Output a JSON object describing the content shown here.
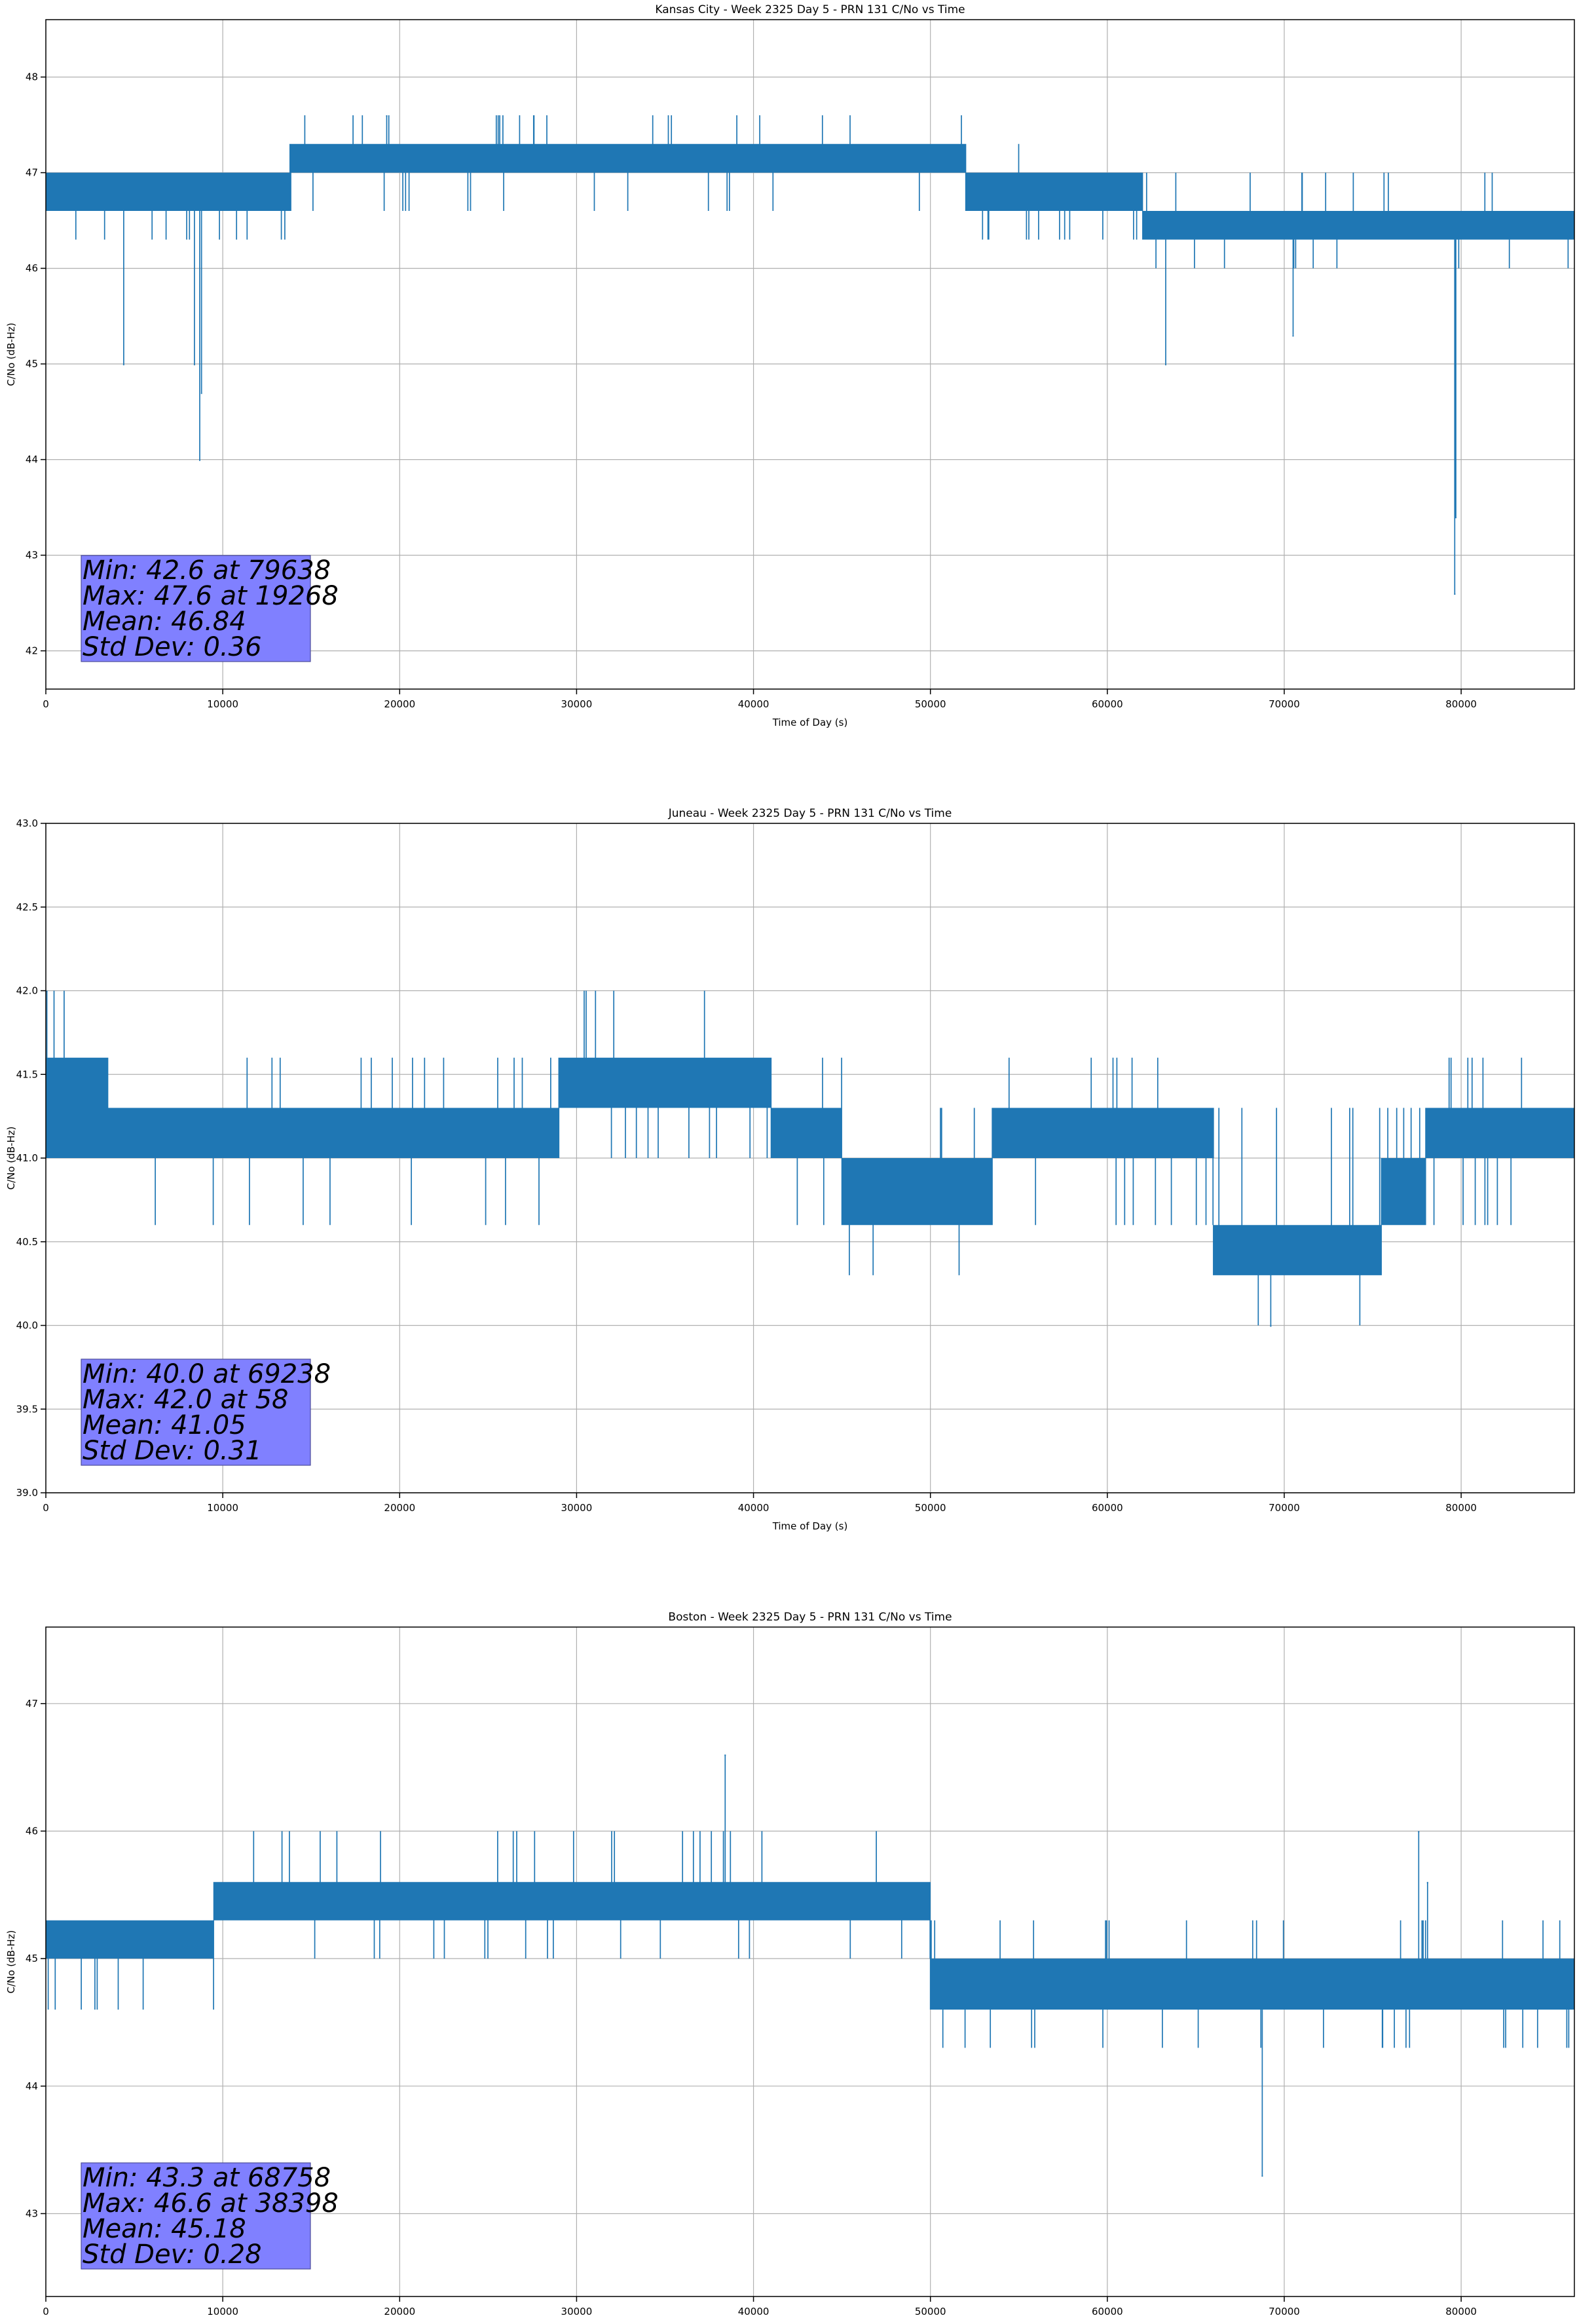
{
  "chart_data": [
    {
      "type": "line",
      "title": "Kansas City - Week 2325 Day 5 - PRN 131 C/No vs Time",
      "xlabel": "Time of Day (s)",
      "ylabel": "C/No (dB-Hz)",
      "xlim": [
        0,
        86400
      ],
      "ylim": [
        41.6,
        48.6
      ],
      "x_ticks": [
        0,
        10000,
        20000,
        30000,
        40000,
        50000,
        60000,
        70000,
        80000
      ],
      "y_ticks": [
        42,
        43,
        44,
        45,
        46,
        47,
        48
      ],
      "y_decimals": 0,
      "grid": true,
      "color": "#1f77b4",
      "stats_text": [
        "Min: 42.6 at 79638",
        "Max: 47.6 at 19268",
        "Mean: 46.84",
        "Std Dev: 0.36"
      ],
      "stats_box_color": "#8080ff",
      "stats_box_position": "bottom-left",
      "segments": [
        {
          "x": [
            0,
            13800
          ],
          "base": [
            46.6,
            47.0
          ],
          "spikes_up": [],
          "spikes_down": [
            46.3
          ]
        },
        {
          "x": [
            13800,
            52000
          ],
          "base": [
            47.0,
            47.3
          ],
          "spikes_up": [
            47.6
          ],
          "spikes_down": [
            46.6
          ]
        },
        {
          "x": [
            52000,
            62000
          ],
          "base": [
            46.6,
            47.0
          ],
          "spikes_up": [
            47.3
          ],
          "spikes_down": [
            46.3
          ]
        },
        {
          "x": [
            62000,
            86400
          ],
          "base": [
            46.3,
            46.6
          ],
          "spikes_up": [
            47.0
          ],
          "spikes_down": [
            46.0
          ]
        }
      ],
      "notable_points": [
        {
          "x": 4400,
          "y": 45.0
        },
        {
          "x": 8400,
          "y": 45.0
        },
        {
          "x": 8700,
          "y": 44.0
        },
        {
          "x": 8800,
          "y": 44.7
        },
        {
          "x": 19268,
          "y": 47.6
        },
        {
          "x": 63300,
          "y": 45.0
        },
        {
          "x": 70500,
          "y": 45.3
        },
        {
          "x": 79638,
          "y": 42.6
        },
        {
          "x": 79700,
          "y": 43.4
        }
      ]
    },
    {
      "type": "line",
      "title": "Juneau - Week 2325 Day 5 - PRN 131 C/No vs Time",
      "xlabel": "Time of Day (s)",
      "ylabel": "C/No (dB-Hz)",
      "xlim": [
        0,
        86400
      ],
      "ylim": [
        39.0,
        43.0
      ],
      "x_ticks": [
        0,
        10000,
        20000,
        30000,
        40000,
        50000,
        60000,
        70000,
        80000
      ],
      "y_ticks": [
        39.0,
        39.5,
        40.0,
        40.5,
        41.0,
        41.5,
        42.0,
        42.5,
        43.0
      ],
      "y_decimals": 1,
      "grid": true,
      "color": "#1f77b4",
      "stats_text": [
        "Min: 40.0 at 69238",
        "Max: 42.0 at 58",
        "Mean: 41.05",
        "Std Dev: 0.31"
      ],
      "stats_box_color": "#8080ff",
      "stats_box_position": "bottom-left",
      "segments": [
        {
          "x": [
            0,
            3500
          ],
          "base": [
            41.0,
            41.6
          ],
          "spikes_up": [
            42.0
          ],
          "spikes_down": []
        },
        {
          "x": [
            3500,
            29000
          ],
          "base": [
            41.0,
            41.3
          ],
          "spikes_up": [
            41.6
          ],
          "spikes_down": [
            40.6
          ]
        },
        {
          "x": [
            29000,
            41000
          ],
          "base": [
            41.3,
            41.6
          ],
          "spikes_up": [
            42.0
          ],
          "spikes_down": [
            41.0
          ]
        },
        {
          "x": [
            41000,
            45000
          ],
          "base": [
            41.0,
            41.3
          ],
          "spikes_up": [
            41.6
          ],
          "spikes_down": [
            40.6
          ]
        },
        {
          "x": [
            45000,
            53500
          ],
          "base": [
            40.6,
            41.0
          ],
          "spikes_up": [
            41.3
          ],
          "spikes_down": [
            40.3
          ]
        },
        {
          "x": [
            53500,
            66000
          ],
          "base": [
            41.0,
            41.3
          ],
          "spikes_up": [
            41.6
          ],
          "spikes_down": [
            40.6
          ]
        },
        {
          "x": [
            66000,
            75500
          ],
          "base": [
            40.3,
            40.6
          ],
          "spikes_up": [
            41.3
          ],
          "spikes_down": [
            40.0
          ]
        },
        {
          "x": [
            75500,
            78000
          ],
          "base": [
            40.6,
            41.0
          ],
          "spikes_up": [
            41.3
          ],
          "spikes_down": []
        },
        {
          "x": [
            78000,
            86400
          ],
          "base": [
            41.0,
            41.3
          ],
          "spikes_up": [
            41.6
          ],
          "spikes_down": [
            40.6
          ]
        }
      ],
      "notable_points": [
        {
          "x": 58,
          "y": 42.0
        },
        {
          "x": 69238,
          "y": 40.0
        }
      ]
    },
    {
      "type": "line",
      "title": "Boston - Week 2325 Day 5 - PRN 131 C/No vs Time",
      "xlabel": "Time of Day (s)",
      "ylabel": "C/No (dB-Hz)",
      "xlim": [
        0,
        86400
      ],
      "ylim": [
        42.35,
        47.6
      ],
      "x_ticks": [
        0,
        10000,
        20000,
        30000,
        40000,
        50000,
        60000,
        70000,
        80000
      ],
      "y_ticks": [
        43,
        44,
        45,
        46,
        47
      ],
      "y_decimals": 0,
      "grid": true,
      "color": "#1f77b4",
      "stats_text": [
        "Min: 43.3 at 68758",
        "Max: 46.6 at 38398",
        "Mean: 45.18",
        "Std Dev: 0.28"
      ],
      "stats_box_color": "#8080ff",
      "stats_box_position": "bottom-left",
      "segments": [
        {
          "x": [
            0,
            9500
          ],
          "base": [
            45.0,
            45.3
          ],
          "spikes_up": [],
          "spikes_down": [
            44.6
          ]
        },
        {
          "x": [
            9500,
            50000
          ],
          "base": [
            45.3,
            45.6
          ],
          "spikes_up": [
            46.0
          ],
          "spikes_down": [
            45.0
          ]
        },
        {
          "x": [
            50000,
            86400
          ],
          "base": [
            44.6,
            45.0
          ],
          "spikes_up": [
            45.3
          ],
          "spikes_down": [
            44.3
          ]
        }
      ],
      "notable_points": [
        {
          "x": 38398,
          "y": 46.6
        },
        {
          "x": 68758,
          "y": 43.3
        },
        {
          "x": 77600,
          "y": 46.0
        },
        {
          "x": 78100,
          "y": 45.6
        }
      ]
    }
  ]
}
